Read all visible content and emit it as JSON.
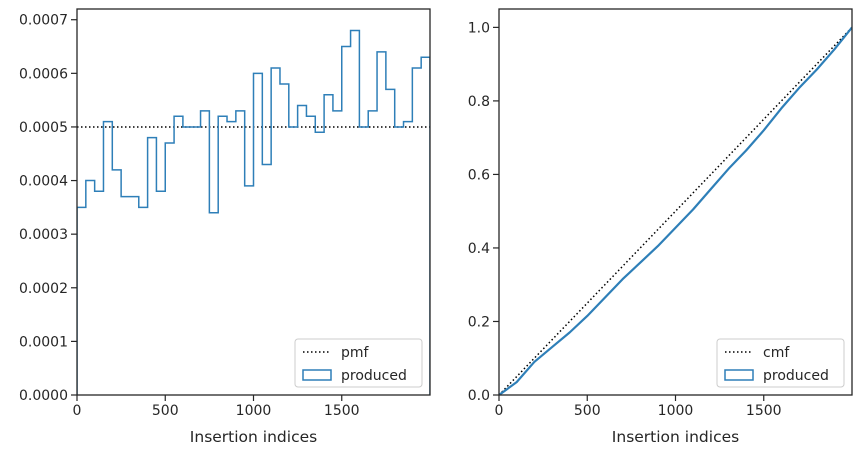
{
  "chart_data": [
    {
      "type": "histogram-step",
      "xlabel": "Insertion indices",
      "ylabel": "",
      "xlim": [
        0,
        2000
      ],
      "ylim": [
        0,
        0.00072
      ],
      "xticks": [
        0,
        500,
        1000,
        1500
      ],
      "xtick_labels": [
        "0",
        "500",
        "1000",
        "1500"
      ],
      "yticks": [
        0,
        0.0001,
        0.0002,
        0.0003,
        0.0004,
        0.0005,
        0.0006,
        0.0007
      ],
      "ytick_labels": [
        "0.0000",
        "0.0001",
        "0.0002",
        "0.0003",
        "0.0004",
        "0.0005",
        "0.0006",
        "0.0007"
      ],
      "legend_position": "lower-right",
      "series": [
        {
          "name": "pmf",
          "style": "dotted",
          "color": "#000000",
          "x": [
            0,
            2000
          ],
          "values": [
            0.0005,
            0.0005
          ]
        },
        {
          "name": "produced",
          "style": "step",
          "color": "#2e7fb8",
          "bin_edges": [
            0,
            50,
            100,
            150,
            200,
            250,
            300,
            350,
            400,
            450,
            500,
            550,
            600,
            650,
            700,
            750,
            800,
            850,
            900,
            950,
            1000,
            1050,
            1100,
            1150,
            1200,
            1250,
            1300,
            1350,
            1400,
            1450,
            1500,
            1550,
            1600,
            1650,
            1700,
            1750,
            1800,
            1850,
            1900,
            1950,
            2000
          ],
          "values": [
            0.00035,
            0.0004,
            0.00038,
            0.00051,
            0.00042,
            0.00037,
            0.00037,
            0.00035,
            0.00048,
            0.00038,
            0.00047,
            0.00052,
            0.0005,
            0.0005,
            0.00053,
            0.00034,
            0.00052,
            0.00051,
            0.00053,
            0.00039,
            0.0006,
            0.00043,
            0.00061,
            0.00058,
            0.0005,
            0.00054,
            0.00052,
            0.00049,
            0.00056,
            0.00053,
            0.00065,
            0.00068,
            0.0005,
            0.00053,
            0.00064,
            0.00057,
            0.0005,
            0.00051,
            0.00061,
            0.00063
          ]
        }
      ]
    },
    {
      "type": "line",
      "xlabel": "Insertion indices",
      "ylabel": "",
      "xlim": [
        0,
        2000
      ],
      "ylim": [
        0,
        1.05
      ],
      "xticks": [
        0,
        500,
        1000,
        1500
      ],
      "xtick_labels": [
        "0",
        "500",
        "1000",
        "1500"
      ],
      "yticks": [
        0,
        0.2,
        0.4,
        0.6,
        0.8,
        1.0
      ],
      "ytick_labels": [
        "0.0",
        "0.2",
        "0.4",
        "0.6",
        "0.8",
        "1.0"
      ],
      "legend_position": "lower-right",
      "series": [
        {
          "name": "cmf",
          "style": "dotted",
          "color": "#000000",
          "x": [
            0,
            2000
          ],
          "values": [
            0,
            1.0
          ]
        },
        {
          "name": "produced",
          "style": "line",
          "color": "#2e7fb8",
          "x": [
            0,
            100,
            200,
            300,
            400,
            500,
            600,
            700,
            800,
            900,
            1000,
            1100,
            1200,
            1300,
            1400,
            1500,
            1600,
            1700,
            1800,
            1900,
            2000
          ],
          "values": [
            0,
            0.035,
            0.09,
            0.13,
            0.17,
            0.215,
            0.265,
            0.315,
            0.36,
            0.405,
            0.455,
            0.505,
            0.56,
            0.615,
            0.665,
            0.72,
            0.78,
            0.835,
            0.885,
            0.94,
            1.0
          ]
        }
      ]
    }
  ]
}
